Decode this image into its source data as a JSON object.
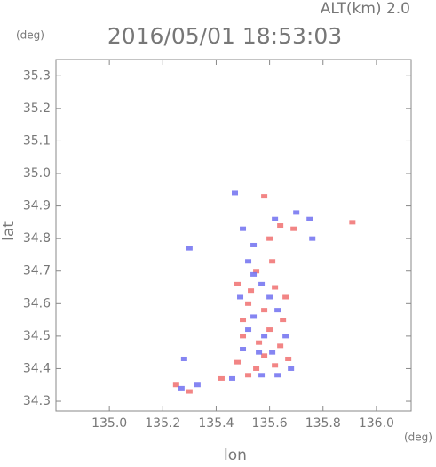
{
  "chart_data": {
    "type": "scatter",
    "altitude_label": "ALT(km)  2.0",
    "title": "2016/05/01 18:53:03",
    "ylabel": "lat",
    "yunit": "(deg)",
    "xlabel": "lon",
    "xunit": "(deg)",
    "xlim": [
      134.8,
      136.13
    ],
    "ylim": [
      34.27,
      35.35
    ],
    "xticks": [
      {
        "value": 135.0,
        "label": "135.0"
      },
      135.2,
      135.4,
      135.6,
      135.8,
      {
        "value": 136.0,
        "label": "136.0"
      }
    ],
    "yticks": [
      34.3,
      34.4,
      34.5,
      34.6,
      34.7,
      34.8,
      34.9,
      {
        "value": 35.0,
        "label": "35.0"
      },
      35.1,
      35.2,
      35.3
    ],
    "series": [
      {
        "color": "#f07070",
        "x": [
          135.58,
          135.64,
          135.69,
          135.91,
          135.6,
          135.48,
          135.55,
          135.62,
          135.52,
          135.58,
          135.66,
          135.5,
          135.6,
          135.56,
          135.64,
          135.58,
          135.62,
          135.55,
          135.67,
          135.48,
          135.52,
          135.3,
          135.25,
          135.42,
          135.53,
          135.65,
          135.61,
          135.5
        ],
        "y": [
          34.93,
          34.84,
          34.83,
          34.85,
          34.8,
          34.66,
          34.7,
          34.65,
          34.6,
          34.58,
          34.62,
          34.55,
          34.52,
          34.48,
          34.47,
          34.44,
          34.41,
          34.4,
          34.43,
          34.42,
          34.38,
          34.33,
          34.35,
          34.37,
          34.64,
          34.55,
          34.73,
          34.5
        ]
      },
      {
        "color": "#7070f0",
        "x": [
          135.47,
          135.5,
          135.54,
          135.62,
          135.76,
          135.7,
          135.75,
          135.3,
          135.28,
          135.52,
          135.57,
          135.49,
          135.6,
          135.54,
          135.63,
          135.52,
          135.58,
          135.66,
          135.56,
          135.61,
          135.5,
          135.63,
          135.46,
          135.33,
          135.27,
          135.57,
          135.68,
          135.54
        ],
        "y": [
          34.94,
          34.83,
          34.78,
          34.86,
          34.8,
          34.88,
          34.86,
          34.77,
          34.43,
          34.73,
          34.66,
          34.62,
          34.62,
          34.56,
          34.58,
          34.52,
          34.5,
          34.5,
          34.45,
          34.45,
          34.46,
          34.38,
          34.37,
          34.35,
          34.34,
          34.38,
          34.4,
          34.69
        ]
      }
    ]
  }
}
